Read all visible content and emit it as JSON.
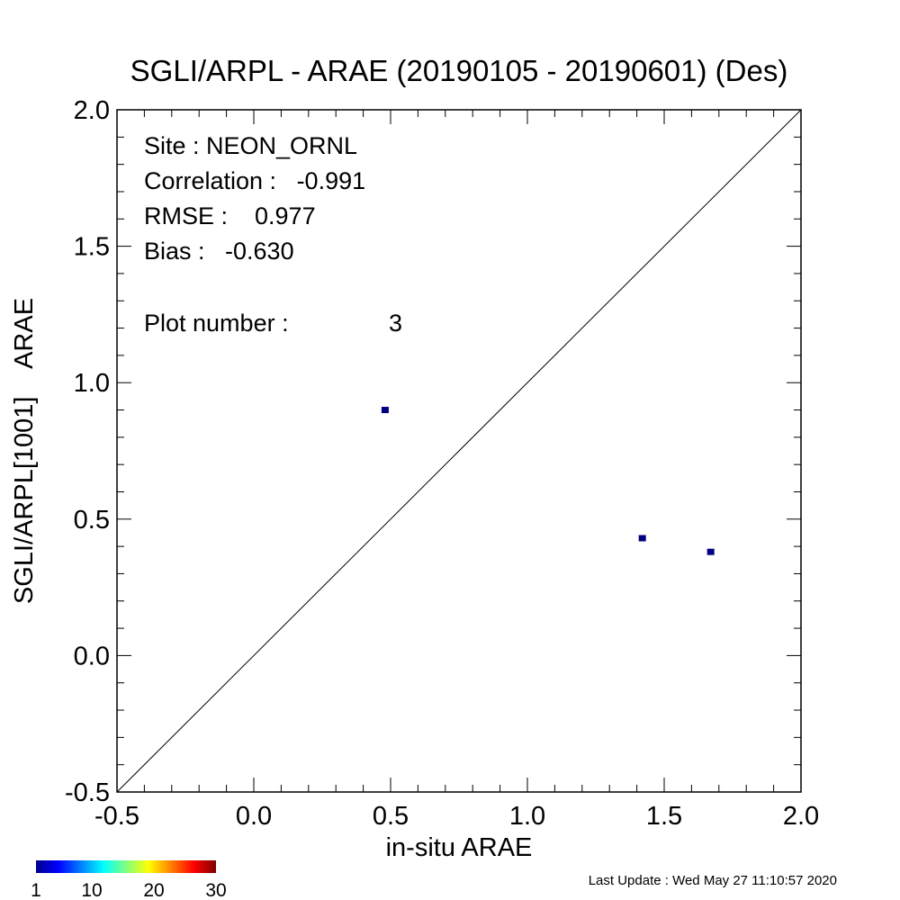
{
  "chart_data": {
    "type": "scatter",
    "title": "SGLI/ARPL - ARAE (20190105 - 20190601) (Des)",
    "xlabel": "in-situ ARAE",
    "ylabel": "SGLI/ARPL[1001]    ARAE",
    "xlim": [
      -0.5,
      2.0
    ],
    "ylim": [
      -0.5,
      2.0
    ],
    "x_ticks": [
      "-0.5",
      "0.0",
      "0.5",
      "1.0",
      "1.5",
      "2.0"
    ],
    "y_ticks": [
      "-0.5",
      "0.0",
      "0.5",
      "1.0",
      "1.5",
      "2.0"
    ],
    "reference_line": "1:1",
    "points": [
      {
        "x": 0.48,
        "y": 0.9
      },
      {
        "x": 1.42,
        "y": 0.43
      },
      {
        "x": 1.67,
        "y": 0.38
      }
    ],
    "point_color": "#000080",
    "stats": {
      "site": "Site : NEON_ORNL",
      "correlation": "Correlation :   -0.991",
      "rmse": "RMSE :    0.977",
      "bias": "Bias :   -0.630",
      "plot_number": "Plot number :",
      "plot_number_value": "3"
    },
    "colorbar": {
      "colors": [
        "#00008f",
        "#0000ff",
        "#0080ff",
        "#00ffff",
        "#80ff80",
        "#ffff00",
        "#ff8000",
        "#ff0000",
        "#800000"
      ],
      "labels": [
        "1",
        "10",
        "20",
        "30"
      ],
      "range": [
        1,
        30
      ]
    }
  },
  "footer": {
    "last_update": "Last Update : Wed May 27 11:10:57 2020"
  }
}
